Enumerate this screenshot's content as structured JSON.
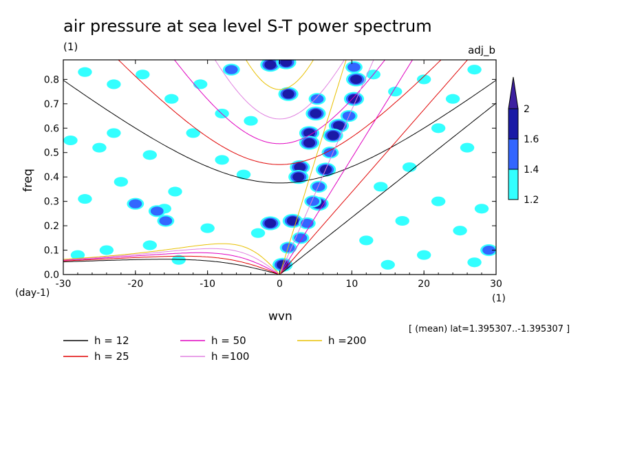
{
  "chart_data": {
    "type": "heatmap",
    "title": "air pressure at sea level S-T power spectrum",
    "units_label": "(1)",
    "experiment_label": "adj_b",
    "xlabel": "wvn",
    "x_unit_label": "(1)",
    "ylabel": "freq",
    "y_unit_label": "(day-1)",
    "xlim": [
      -30,
      30
    ],
    "ylim": [
      0,
      0.88
    ],
    "x_ticks": [
      "-30",
      "-20",
      "-10",
      "0",
      "10",
      "20",
      "30"
    ],
    "y_ticks": [
      "0.0",
      "0.1",
      "0.2",
      "0.3",
      "0.4",
      "0.5",
      "0.6",
      "0.7",
      "0.8"
    ],
    "region_note": "[ (mean) lat=1.395307..-1.395307 ]",
    "colorbar": {
      "levels": [
        "1.2",
        "1.4",
        "1.6",
        "2"
      ],
      "colors": [
        "#33ffff",
        "#3366ff",
        "#1a1aa6",
        "#3c1fa0"
      ]
    },
    "shaded_blobs": [
      {
        "x": -6.7,
        "y": 0.84,
        "level": 2
      },
      {
        "x": -1.3,
        "y": 0.86,
        "level": 3
      },
      {
        "x": 0.9,
        "y": 0.87,
        "level": 3
      },
      {
        "x": 1.2,
        "y": 0.74,
        "level": 3
      },
      {
        "x": 5.2,
        "y": 0.72,
        "level": 2
      },
      {
        "x": 5.0,
        "y": 0.66,
        "level": 3
      },
      {
        "x": 4.1,
        "y": 0.58,
        "level": 3
      },
      {
        "x": 4.1,
        "y": 0.54,
        "level": 3
      },
      {
        "x": 2.8,
        "y": 0.44,
        "level": 3
      },
      {
        "x": 2.6,
        "y": 0.4,
        "level": 3
      },
      {
        "x": 5.4,
        "y": 0.29,
        "level": 3
      },
      {
        "x": -1.3,
        "y": 0.21,
        "level": 3
      },
      {
        "x": 1.8,
        "y": 0.22,
        "level": 3
      },
      {
        "x": 0.4,
        "y": 0.04,
        "level": 3
      },
      {
        "x": 1.2,
        "y": 0.11,
        "level": 2
      },
      {
        "x": 10.3,
        "y": 0.85,
        "level": 2
      },
      {
        "x": 10.6,
        "y": 0.8,
        "level": 3
      },
      {
        "x": 10.3,
        "y": 0.72,
        "level": 3
      },
      {
        "x": 9.6,
        "y": 0.65,
        "level": 2
      },
      {
        "x": 8.2,
        "y": 0.61,
        "level": 3
      },
      {
        "x": 7.4,
        "y": 0.57,
        "level": 3
      },
      {
        "x": 7.0,
        "y": 0.5,
        "level": 2
      },
      {
        "x": 6.4,
        "y": 0.43,
        "level": 3
      },
      {
        "x": 5.4,
        "y": 0.36,
        "level": 2
      },
      {
        "x": 4.6,
        "y": 0.3,
        "level": 2
      },
      {
        "x": 3.8,
        "y": 0.21,
        "level": 2
      },
      {
        "x": 2.9,
        "y": 0.15,
        "level": 2
      },
      {
        "x": -23.0,
        "y": 0.58,
        "level": 1
      },
      {
        "x": -25.0,
        "y": 0.52,
        "level": 1
      },
      {
        "x": -29.0,
        "y": 0.55,
        "level": 1
      },
      {
        "x": -18.0,
        "y": 0.49,
        "level": 1
      },
      {
        "x": -22.0,
        "y": 0.38,
        "level": 1
      },
      {
        "x": -27.0,
        "y": 0.31,
        "level": 1
      },
      {
        "x": -20.0,
        "y": 0.29,
        "level": 2
      },
      {
        "x": -16.0,
        "y": 0.27,
        "level": 1
      },
      {
        "x": -14.5,
        "y": 0.34,
        "level": 1
      },
      {
        "x": -10.0,
        "y": 0.19,
        "level": 1
      },
      {
        "x": -17.0,
        "y": 0.26,
        "level": 2
      },
      {
        "x": -15.8,
        "y": 0.22,
        "level": 2
      },
      {
        "x": -12.0,
        "y": 0.58,
        "level": 1
      },
      {
        "x": -8.0,
        "y": 0.66,
        "level": 1
      },
      {
        "x": -4.0,
        "y": 0.63,
        "level": 1
      },
      {
        "x": -11.0,
        "y": 0.78,
        "level": 1
      },
      {
        "x": -15.0,
        "y": 0.72,
        "level": 1
      },
      {
        "x": -27.0,
        "y": 0.83,
        "level": 1
      },
      {
        "x": -23.0,
        "y": 0.78,
        "level": 1
      },
      {
        "x": -19.0,
        "y": 0.82,
        "level": 1
      },
      {
        "x": -8.0,
        "y": 0.47,
        "level": 1
      },
      {
        "x": -5.0,
        "y": 0.41,
        "level": 1
      },
      {
        "x": -3.0,
        "y": 0.17,
        "level": 1
      },
      {
        "x": -24.0,
        "y": 0.1,
        "level": 1
      },
      {
        "x": -18.0,
        "y": 0.12,
        "level": 1
      },
      {
        "x": -28.0,
        "y": 0.08,
        "level": 1
      },
      {
        "x": -14.0,
        "y": 0.06,
        "level": 1
      },
      {
        "x": 13.0,
        "y": 0.82,
        "level": 1
      },
      {
        "x": 16.0,
        "y": 0.75,
        "level": 1
      },
      {
        "x": 20.0,
        "y": 0.8,
        "level": 1
      },
      {
        "x": 24.0,
        "y": 0.72,
        "level": 1
      },
      {
        "x": 27.0,
        "y": 0.84,
        "level": 1
      },
      {
        "x": 22.0,
        "y": 0.6,
        "level": 1
      },
      {
        "x": 26.0,
        "y": 0.52,
        "level": 1
      },
      {
        "x": 18.0,
        "y": 0.44,
        "level": 1
      },
      {
        "x": 14.0,
        "y": 0.36,
        "level": 1
      },
      {
        "x": 22.0,
        "y": 0.3,
        "level": 1
      },
      {
        "x": 28.0,
        "y": 0.27,
        "level": 1
      },
      {
        "x": 17.0,
        "y": 0.22,
        "level": 1
      },
      {
        "x": 25.0,
        "y": 0.18,
        "level": 1
      },
      {
        "x": 12.0,
        "y": 0.14,
        "level": 1
      },
      {
        "x": 20.0,
        "y": 0.08,
        "level": 1
      },
      {
        "x": 27.0,
        "y": 0.05,
        "level": 1
      },
      {
        "x": 29.0,
        "y": 0.1,
        "level": 2
      },
      {
        "x": 15.0,
        "y": 0.04,
        "level": 1
      }
    ],
    "dispersion_series": [
      {
        "name": "h = 12",
        "h": 12,
        "color": "#000000"
      },
      {
        "name": "h = 25",
        "h": 25,
        "color": "#e00000"
      },
      {
        "name": "h = 50",
        "h": 50,
        "color": "#e000c0"
      },
      {
        "name": "h =100",
        "h": 100,
        "color": "#e080e0"
      },
      {
        "name": "h =200",
        "h": 200,
        "color": "#e8c000"
      }
    ]
  }
}
